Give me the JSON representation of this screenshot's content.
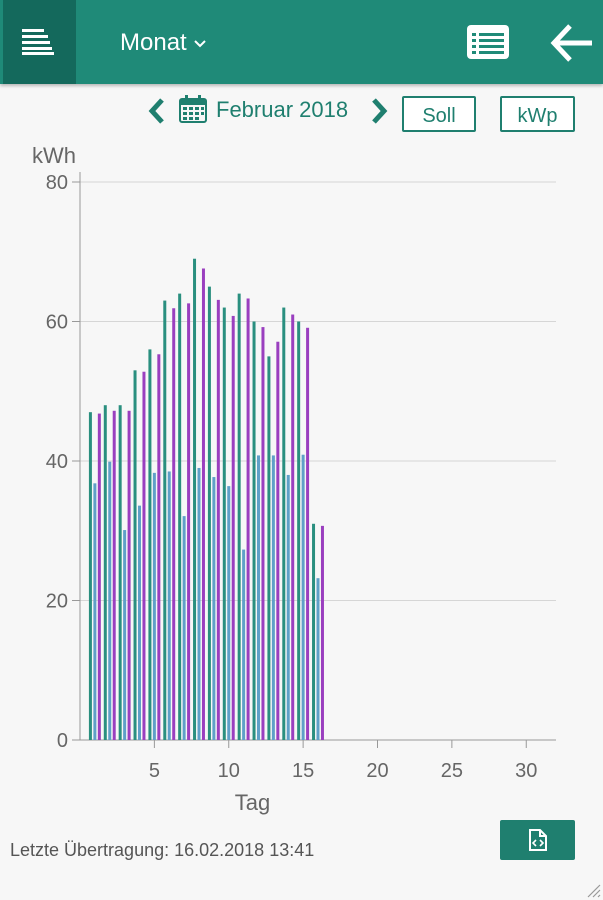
{
  "header": {
    "view_label": "Monat",
    "icons": {
      "menu": "menu-lines-icon",
      "dropdown": "chevron-down-icon",
      "list": "list-view-icon",
      "back": "arrow-left-icon"
    }
  },
  "date_nav": {
    "label": "Februar 2018",
    "icons": {
      "prev": "chevron-left-icon",
      "calendar": "calendar-icon",
      "next": "chevron-right-icon"
    }
  },
  "buttons": {
    "soll": "Soll",
    "kwp": "kWp"
  },
  "chart_data": {
    "type": "bar",
    "ylabel": "kWh",
    "xlabel": "Tag",
    "ylim": [
      0,
      80
    ],
    "yticks": [
      0,
      20,
      40,
      60,
      80
    ],
    "xlim": [
      0,
      32
    ],
    "xticks": [
      5,
      10,
      15,
      20,
      25,
      30
    ],
    "grid": true,
    "days": [
      1,
      2,
      3,
      4,
      5,
      6,
      7,
      8,
      9,
      10,
      11,
      12,
      13,
      14,
      15,
      16
    ],
    "series": [
      {
        "color": "#2a8f7f",
        "values": [
          47,
          48,
          48,
          53,
          56,
          63,
          64,
          69,
          65,
          62,
          64,
          60,
          55,
          62,
          60,
          31
        ]
      },
      {
        "color": "#5fa0c8",
        "values": [
          36.8,
          39.9,
          30.1,
          33.6,
          38.3,
          38.5,
          32.1,
          39,
          37.7,
          36.4,
          27.3,
          40.8,
          40.8,
          38,
          40.9,
          23.2
        ]
      },
      {
        "color": "#9a3fbf",
        "values": [
          46.8,
          47.2,
          47.2,
          52.8,
          55.3,
          61.9,
          62.6,
          67.6,
          63.1,
          60.8,
          63.3,
          59.2,
          57.1,
          61,
          59.1,
          30.7
        ]
      }
    ],
    "colors": {
      "grid": "#d6d6d6",
      "axis": "#999999",
      "text": "#666666"
    }
  },
  "footer": {
    "status": "Letzte Übertragung: 16.02.2018 13:41",
    "export_icon": "export-file-icon"
  },
  "window": {
    "resize_icon": "resize-grip-icon"
  }
}
